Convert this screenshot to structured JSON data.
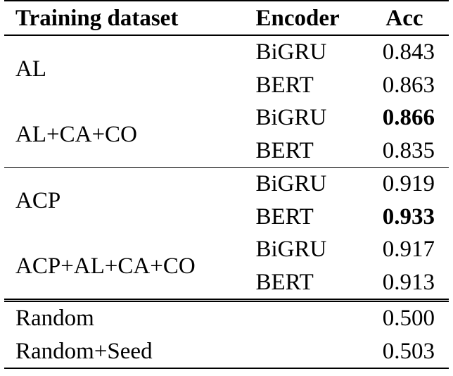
{
  "header": {
    "dataset": "Training dataset",
    "encoder": "Encoder",
    "acc": "Acc"
  },
  "groups": [
    {
      "dataset": "AL",
      "rows": [
        {
          "encoder": "BiGRU",
          "acc": "0.843",
          "bold": false
        },
        {
          "encoder": "BERT",
          "acc": "0.863",
          "bold": false
        }
      ]
    },
    {
      "dataset": "AL+CA+CO",
      "rows": [
        {
          "encoder": "BiGRU",
          "acc": "0.866",
          "bold": true
        },
        {
          "encoder": "BERT",
          "acc": "0.835",
          "bold": false
        }
      ]
    },
    {
      "dataset": "ACP",
      "rows": [
        {
          "encoder": "BiGRU",
          "acc": "0.919",
          "bold": false
        },
        {
          "encoder": "BERT",
          "acc": "0.933",
          "bold": true
        }
      ]
    },
    {
      "dataset": "ACP+AL+CA+CO",
      "rows": [
        {
          "encoder": "BiGRU",
          "acc": "0.917",
          "bold": false
        },
        {
          "encoder": "BERT",
          "acc": "0.913",
          "bold": false
        }
      ]
    }
  ],
  "baselines": [
    {
      "dataset": "Random",
      "encoder": "",
      "acc": "0.500"
    },
    {
      "dataset": "Random+Seed",
      "encoder": "",
      "acc": "0.503"
    }
  ]
}
